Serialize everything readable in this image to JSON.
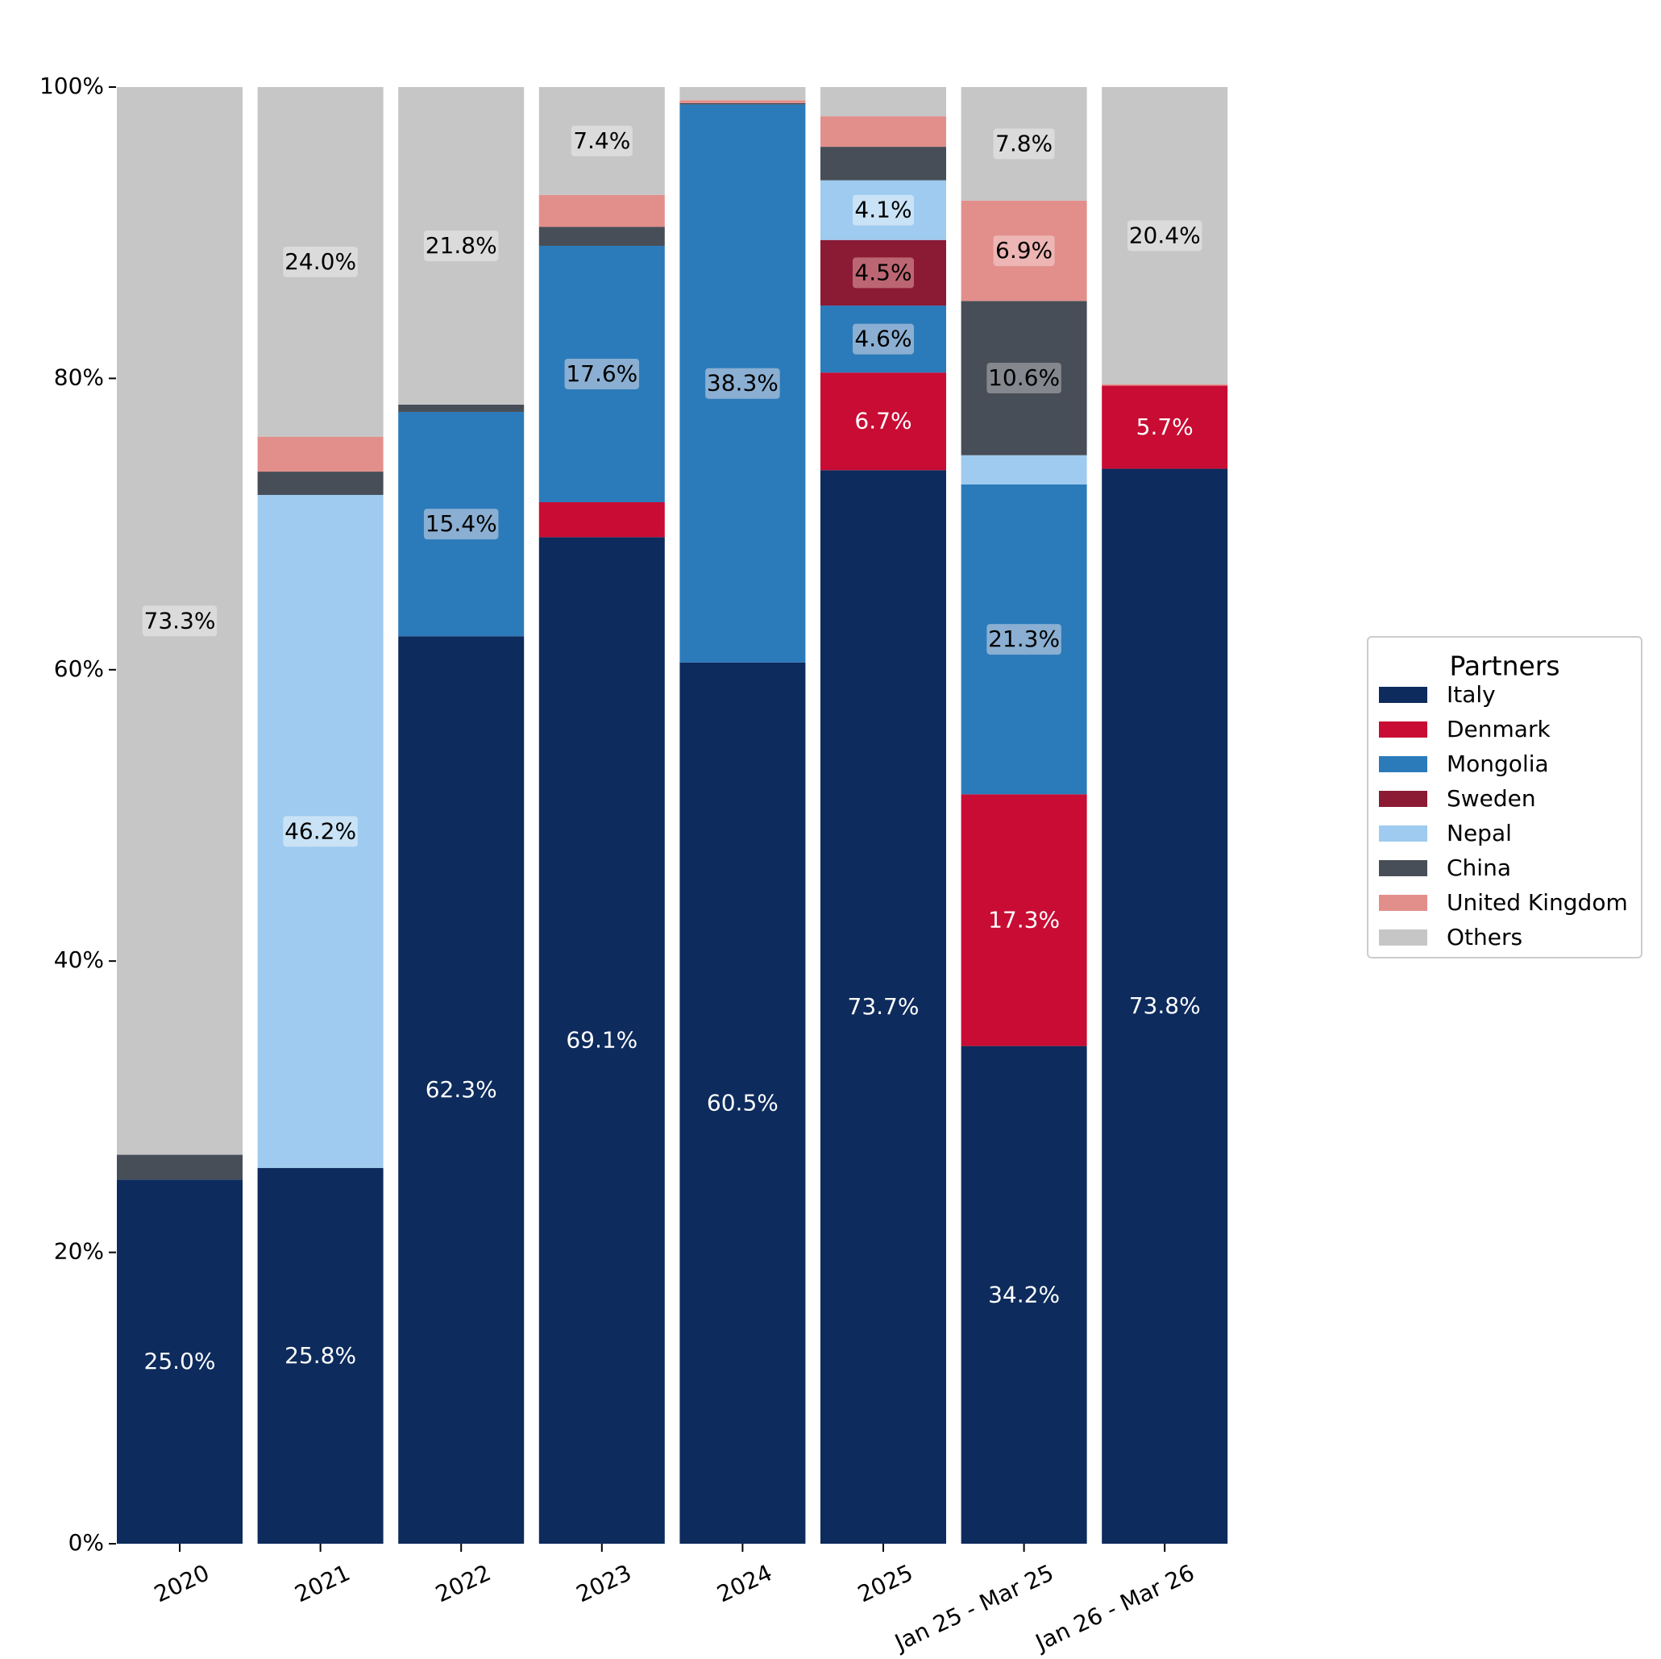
{
  "chart_data": {
    "type": "bar",
    "stacked": true,
    "normalized": true,
    "title": "",
    "xlabel": "",
    "ylabel": "",
    "ylim": [
      0,
      100
    ],
    "yticks": [
      "0%",
      "20%",
      "40%",
      "60%",
      "80%",
      "100%"
    ],
    "ytick_values": [
      0,
      20,
      40,
      60,
      80,
      100
    ],
    "grid": false,
    "categories": [
      "2020",
      "2021",
      "2022",
      "2023",
      "2024",
      "2025",
      "Jan 25 - Mar 25",
      "Jan 26 - Mar 26"
    ],
    "series": [
      {
        "name": "Italy",
        "color": "#0d2b5c",
        "label_color": "#ffffff",
        "label_bg": "",
        "values": [
          25.0,
          25.8,
          62.3,
          69.1,
          60.5,
          73.7,
          34.2,
          73.8
        ],
        "labels": [
          "25.0%",
          "25.8%",
          "62.3%",
          "69.1%",
          "60.5%",
          "73.7%",
          "34.2%",
          "73.8%"
        ]
      },
      {
        "name": "Denmark",
        "color": "#c80c34",
        "label_color": "#ffffff",
        "label_bg": "",
        "values": [
          0,
          0,
          0,
          2.4,
          0,
          6.7,
          17.3,
          5.7
        ],
        "labels": [
          "",
          "",
          "",
          "",
          "",
          "6.7%",
          "17.3%",
          "5.7%"
        ]
      },
      {
        "name": "Mongolia",
        "color": "#2b7bba",
        "label_color": "#000000",
        "label_bg": "#9bb8d6",
        "values": [
          0,
          0,
          15.4,
          17.6,
          38.3,
          4.6,
          21.3,
          0
        ],
        "labels": [
          "",
          "",
          "15.4%",
          "17.6%",
          "38.3%",
          "4.6%",
          "21.3%",
          ""
        ]
      },
      {
        "name": "Sweden",
        "color": "#8b1a34",
        "label_color": "#000000",
        "label_bg": "#c4747f",
        "values": [
          0,
          0,
          0,
          0,
          0,
          4.5,
          0,
          0
        ],
        "labels": [
          "",
          "",
          "",
          "",
          "",
          "4.5%",
          "",
          ""
        ]
      },
      {
        "name": "Nepal",
        "color": "#9ecbef",
        "label_color": "#000000",
        "label_bg": "#d0e6f7",
        "values": [
          0,
          46.2,
          0,
          0,
          0,
          4.1,
          2.0,
          0
        ],
        "labels": [
          "",
          "46.2%",
          "",
          "",
          "",
          "4.1%",
          "",
          ""
        ]
      },
      {
        "name": "China",
        "color": "#474e57",
        "label_color": "#000000",
        "label_bg": "#8f9296",
        "values": [
          1.7,
          1.6,
          0.5,
          1.3,
          0.1,
          2.3,
          10.6,
          0
        ],
        "labels": [
          "",
          "",
          "",
          "",
          "",
          "",
          "10.6%",
          ""
        ]
      },
      {
        "name": "United Kingdom",
        "color": "#e28f8c",
        "label_color": "#000000",
        "label_bg": "#eebcba",
        "values": [
          0,
          2.4,
          0,
          2.2,
          0.2,
          2.1,
          6.9,
          0.1
        ],
        "labels": [
          "",
          "",
          "",
          "",
          "",
          "",
          "6.9%",
          ""
        ]
      },
      {
        "name": "Others",
        "color": "#c6c6c6",
        "label_color": "#000000",
        "label_bg": "#dedede",
        "values": [
          73.3,
          24.0,
          21.8,
          7.4,
          0.9,
          2.0,
          7.8,
          20.4
        ],
        "labels": [
          "73.3%",
          "24.0%",
          "21.8%",
          "7.4%",
          "",
          "",
          "7.8%",
          "20.4%"
        ]
      }
    ],
    "legend": {
      "title": "Partners",
      "placement": "right",
      "entries": [
        "Italy",
        "Denmark",
        "Mongolia",
        "Sweden",
        "Nepal",
        "China",
        "United Kingdom",
        "Others"
      ]
    }
  }
}
